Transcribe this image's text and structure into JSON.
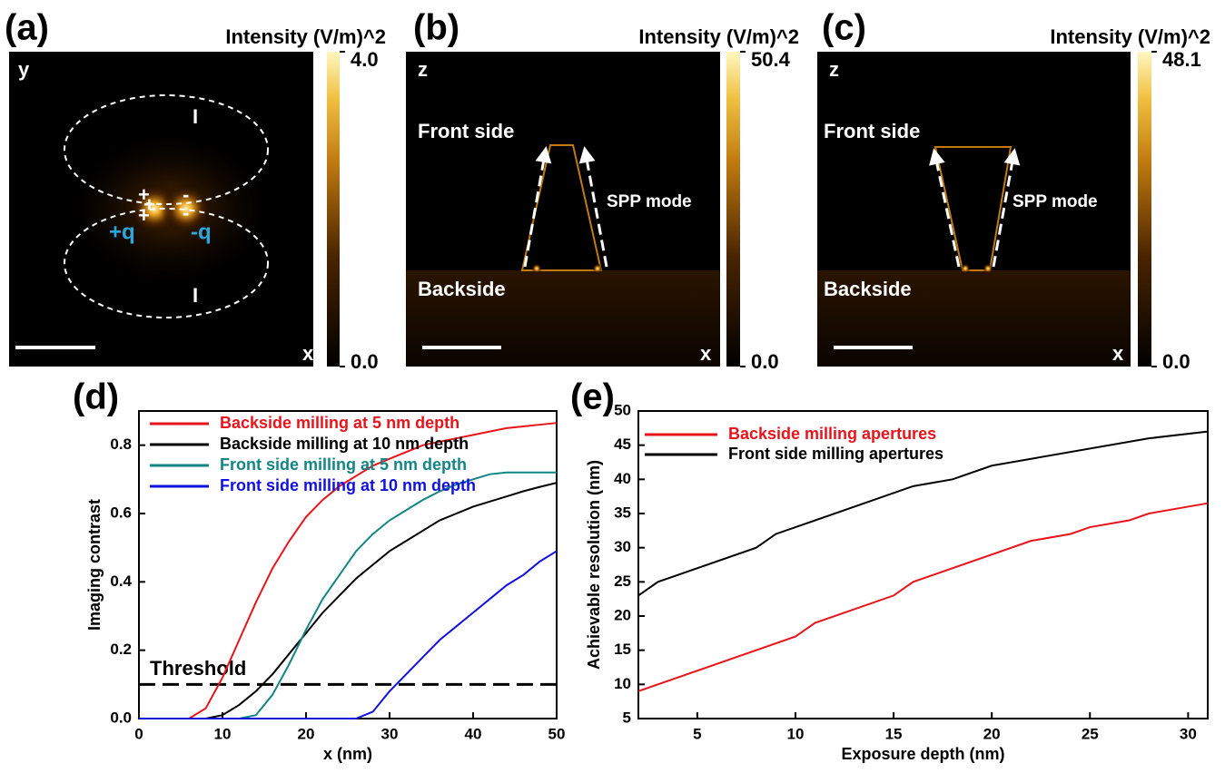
{
  "chart_data": [
    {
      "type": "field-map",
      "panel": "(a)",
      "colorbar_title": "Intensity (V/m)^2",
      "colorbar_lim": [
        0,
        4
      ],
      "colorbar_ticks": [
        {
          "value": 0,
          "label": "0.0"
        },
        {
          "value": 4,
          "label": "4.0"
        }
      ],
      "annotations": [
        "y",
        "x",
        "+q",
        "-q",
        "I",
        "I",
        "+",
        "+",
        "+",
        "-",
        "-"
      ]
    },
    {
      "type": "field-map",
      "panel": "(b)",
      "colorbar_title": "Intensity (V/m)^2",
      "colorbar_lim": [
        0,
        50.4
      ],
      "colorbar_ticks": [
        {
          "value": 0,
          "label": "0.0"
        },
        50.4
      ],
      "annotations": [
        "z",
        "x",
        "Front side",
        "Backside",
        "SPP mode"
      ]
    },
    {
      "type": "field-map",
      "panel": "(c)",
      "colorbar_title": "Intensity (V/m)^2",
      "colorbar_lim": [
        0,
        48.1
      ],
      "colorbar_ticks": [
        {
          "value": 0,
          "label": "0.0"
        },
        48.1
      ],
      "annotations": [
        "z",
        "x",
        "Front side",
        "Backside",
        "SPP mode"
      ]
    },
    {
      "type": "line",
      "panel": "(d)",
      "xlabel": "x (nm)",
      "ylabel": "Imaging contrast",
      "x": [
        0,
        2,
        4,
        6,
        8,
        10,
        12,
        14,
        16,
        18,
        20,
        22,
        24,
        26,
        28,
        30,
        32,
        34,
        36,
        38,
        40,
        42,
        44,
        46,
        48,
        50
      ],
      "xlim": [
        0,
        50
      ],
      "xticks": [
        0,
        10,
        20,
        30,
        40,
        50
      ],
      "ylim": [
        0,
        0.9
      ],
      "yticks": [
        {
          "value": 0,
          "label": "0.0"
        },
        0.2,
        0.4,
        0.6,
        0.8
      ],
      "legend": "upper left",
      "threshold": {
        "label": "Threshold",
        "value": 0.1
      },
      "series": [
        {
          "name": "Backside milling at 5 nm depth",
          "color": "#e8141b",
          "values": [
            0,
            0,
            0,
            0,
            0.03,
            0.12,
            0.23,
            0.34,
            0.44,
            0.52,
            0.59,
            0.64,
            0.68,
            0.71,
            0.74,
            0.76,
            0.78,
            0.8,
            0.81,
            0.82,
            0.83,
            0.84,
            0.85,
            0.855,
            0.86,
            0.865
          ]
        },
        {
          "name": "Backside milling at 10 nm depth",
          "color": "#000000",
          "values": [
            0,
            0,
            0,
            0,
            0,
            0.01,
            0.04,
            0.08,
            0.13,
            0.19,
            0.25,
            0.31,
            0.36,
            0.41,
            0.45,
            0.49,
            0.52,
            0.55,
            0.58,
            0.6,
            0.62,
            0.635,
            0.65,
            0.665,
            0.678,
            0.69
          ]
        },
        {
          "name": "Front side milling at 5 nm depth",
          "color": "#138585",
          "values": [
            0,
            0,
            0,
            0,
            0,
            0,
            0,
            0.01,
            0.07,
            0.16,
            0.26,
            0.35,
            0.42,
            0.49,
            0.54,
            0.58,
            0.61,
            0.64,
            0.665,
            0.685,
            0.7,
            0.715,
            0.72,
            0.72,
            0.72,
            0.72
          ]
        },
        {
          "name": "Front side milling at 10 nm depth",
          "color": "#1010e0",
          "values": [
            0,
            0,
            0,
            0,
            0,
            0,
            0,
            0,
            0,
            0,
            0,
            0,
            0,
            0,
            0.02,
            0.08,
            0.13,
            0.18,
            0.23,
            0.27,
            0.31,
            0.35,
            0.39,
            0.42,
            0.46,
            0.49
          ]
        }
      ]
    },
    {
      "type": "line",
      "panel": "(e)",
      "xlabel": "Exposure depth (nm)",
      "ylabel": "Achievable resolution (nm)",
      "xlim": [
        2,
        31
      ],
      "xticks": [
        5,
        10,
        15,
        20,
        25,
        30
      ],
      "ylim": [
        5,
        50
      ],
      "yticks": [
        5,
        10,
        15,
        20,
        25,
        30,
        35,
        40,
        45,
        50
      ],
      "legend": "upper left",
      "series": [
        {
          "name": "Backside milling apertures",
          "color": "#e8141b",
          "x": [
            2,
            10,
            11,
            15,
            16,
            22,
            24,
            25,
            27,
            28,
            31
          ],
          "values": [
            9,
            17,
            19,
            23,
            25,
            31,
            32,
            33,
            34,
            35,
            36.5
          ]
        },
        {
          "name": "Front side milling apertures",
          "color": "#000000",
          "x": [
            2,
            3,
            8,
            9,
            16,
            18,
            20,
            22,
            28,
            31
          ],
          "values": [
            23,
            25,
            30,
            32,
            39,
            40,
            42,
            43,
            46,
            47
          ]
        }
      ]
    }
  ]
}
